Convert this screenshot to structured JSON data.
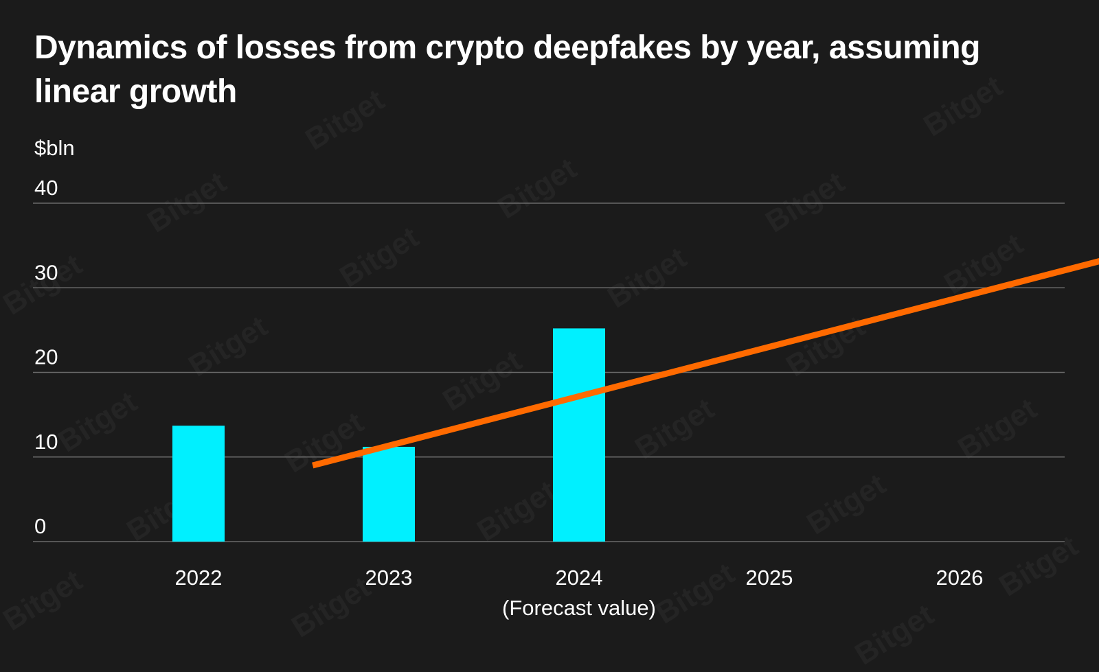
{
  "chart_data": {
    "type": "bar",
    "title": "Dynamics of losses from crypto deepfakes by year, assuming linear growth",
    "ylabel": "$bln",
    "xlabel": "",
    "categories": [
      "2022",
      "2023",
      "2024",
      "2025",
      "2026"
    ],
    "category_notes": [
      "",
      "",
      "",
      "",
      "(Forecast value)"
    ],
    "yticks": [
      "0",
      "10",
      "20",
      "30",
      "40"
    ],
    "ylim": [
      0,
      40
    ],
    "grid": true,
    "series": [
      {
        "type": "bar",
        "values": [
          13.7,
          11.2,
          25.2,
          null,
          null
        ],
        "color": "#00f0ff"
      }
    ],
    "trend_line": {
      "type": "line",
      "kind": "linear",
      "start": {
        "x": 1.6,
        "y": 9.0
      },
      "end": {
        "x": 6.55,
        "y": 37.9
      },
      "color": "#ff6a00"
    }
  },
  "watermark": {
    "text": "Bitget"
  }
}
